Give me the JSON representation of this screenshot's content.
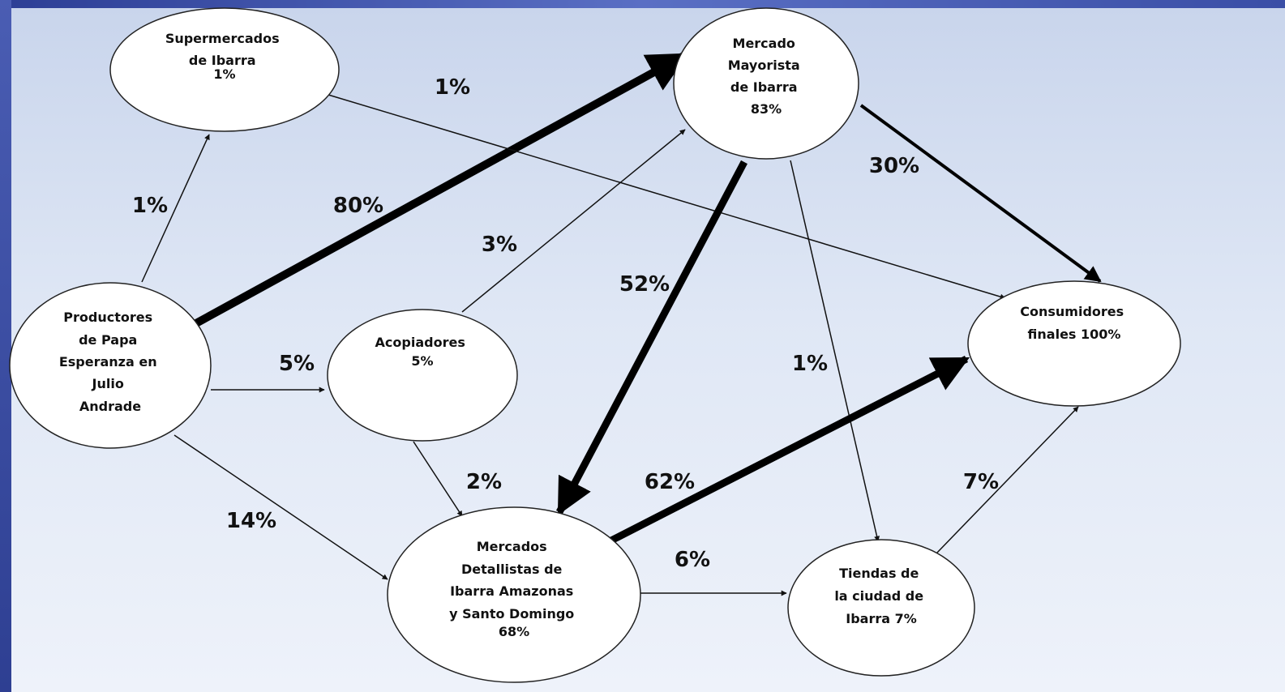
{
  "nodes": {
    "supermercados": {
      "lines": [
        "Supermercados",
        "de Ibarra",
        "",
        "1%"
      ]
    },
    "mayorista": {
      "lines": [
        "Mercado",
        "Mayorista",
        "de Ibarra",
        "83%"
      ]
    },
    "productores": {
      "lines": [
        "Productores",
        "de Papa",
        "Esperanza en",
        "Julio",
        "Andrade"
      ]
    },
    "acopiadores": {
      "lines": [
        "Acopiadores",
        "",
        "5%"
      ]
    },
    "consumidores": {
      "lines": [
        "Consumidores",
        "finales 100%"
      ]
    },
    "detallistas": {
      "lines": [
        "Mercados",
        "Detallistas de",
        "Ibarra Amazonas",
        "y Santo Domingo",
        "",
        "68%"
      ]
    },
    "tiendas": {
      "lines": [
        "Tiendas de",
        "la ciudad de",
        "Ibarra 7%"
      ]
    }
  },
  "edges": [
    {
      "id": "productores-supermercados",
      "label": "1%"
    },
    {
      "id": "productores-mayorista",
      "label": "80%"
    },
    {
      "id": "supermercados-consumidores",
      "label": "1%"
    },
    {
      "id": "acopiadores-mayorista",
      "label": "3%"
    },
    {
      "id": "mayorista-consumidores",
      "label": "30%"
    },
    {
      "id": "mayorista-detallistas",
      "label": "52%"
    },
    {
      "id": "mayorista-tiendas",
      "label": "1%"
    },
    {
      "id": "productores-acopiadores",
      "label": "5%"
    },
    {
      "id": "acopiadores-detallistas",
      "label": "2%"
    },
    {
      "id": "productores-detallistas",
      "label": "14%"
    },
    {
      "id": "detallistas-consumidores",
      "label": "62%"
    },
    {
      "id": "detallistas-tiendas",
      "label": "6%"
    },
    {
      "id": "tiendas-consumidores",
      "label": "7%"
    }
  ]
}
